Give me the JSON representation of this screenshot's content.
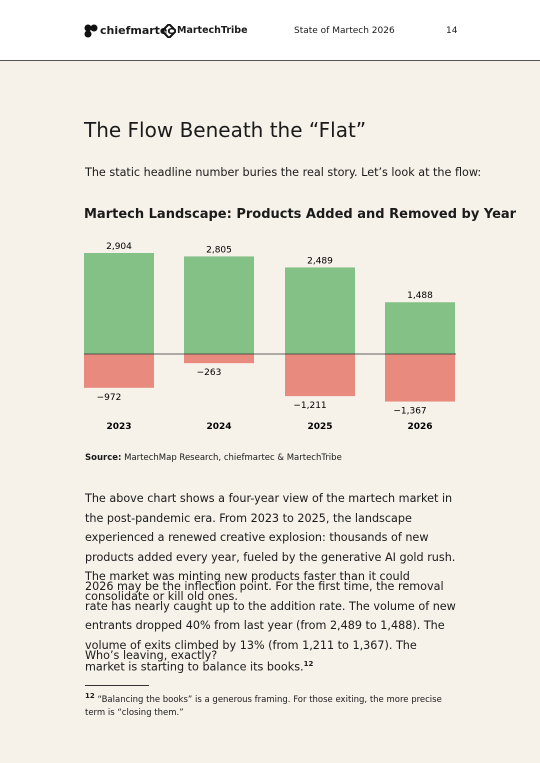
{
  "header": {
    "brand_1": "chiefmartec",
    "brand_2": "MartechTribe",
    "report": "State of Martech 2026",
    "page": 14
  },
  "title": "The Flow Beneath the “Flat”",
  "intro": "The static headline number buries the real story. Let’s look at the flow:",
  "chart_data": {
    "type": "bar",
    "title": "Martech Landscape: Products Added and Removed by Year",
    "categories": [
      "2023",
      "2024",
      "2025",
      "2026"
    ],
    "series": [
      {
        "color": "#84c186",
        "values": [
          2904,
          2805,
          2489,
          1488
        ],
        "value_labels": [
          "2,904",
          "2,805",
          "2,489",
          "1,488"
        ]
      },
      {
        "color": "#e98a7e",
        "values": [
          -972,
          -263,
          -1211,
          -1367
        ],
        "value_labels": [
          "−972",
          "−263",
          "−1,211",
          "−1,367"
        ]
      }
    ]
  },
  "source": {
    "label": "Source:",
    "text": "MartechMap Research, chiefmartec & MartechTribe"
  },
  "paragraphs": [
    {
      "text": "The above chart shows a four-year view of the martech market in the post-pandemic era. From 2023 to 2025, the landscape experienced a renewed creative explosion: thousands of new products added every year, fueled by the generative AI gold rush. The market was minting new products faster than it could consolidate or kill old ones."
    },
    {
      "text": "2026 may be the inflection point. For the first time, the removal rate has nearly caught up to the addition rate. The volume of new entrants dropped 40% from last year (from 2,489 to 1,488). The volume of exits climbed by 13% (from 1,211 to 1,367). The market is starting to balance its books.",
      "footnote_ref": "12"
    },
    {
      "text": "Who’s leaving, exactly?"
    }
  ],
  "footnote": {
    "number": "12",
    "text": "“Balancing the books” is a generous framing. For those exiting, the more precise term is “closing them.”"
  }
}
